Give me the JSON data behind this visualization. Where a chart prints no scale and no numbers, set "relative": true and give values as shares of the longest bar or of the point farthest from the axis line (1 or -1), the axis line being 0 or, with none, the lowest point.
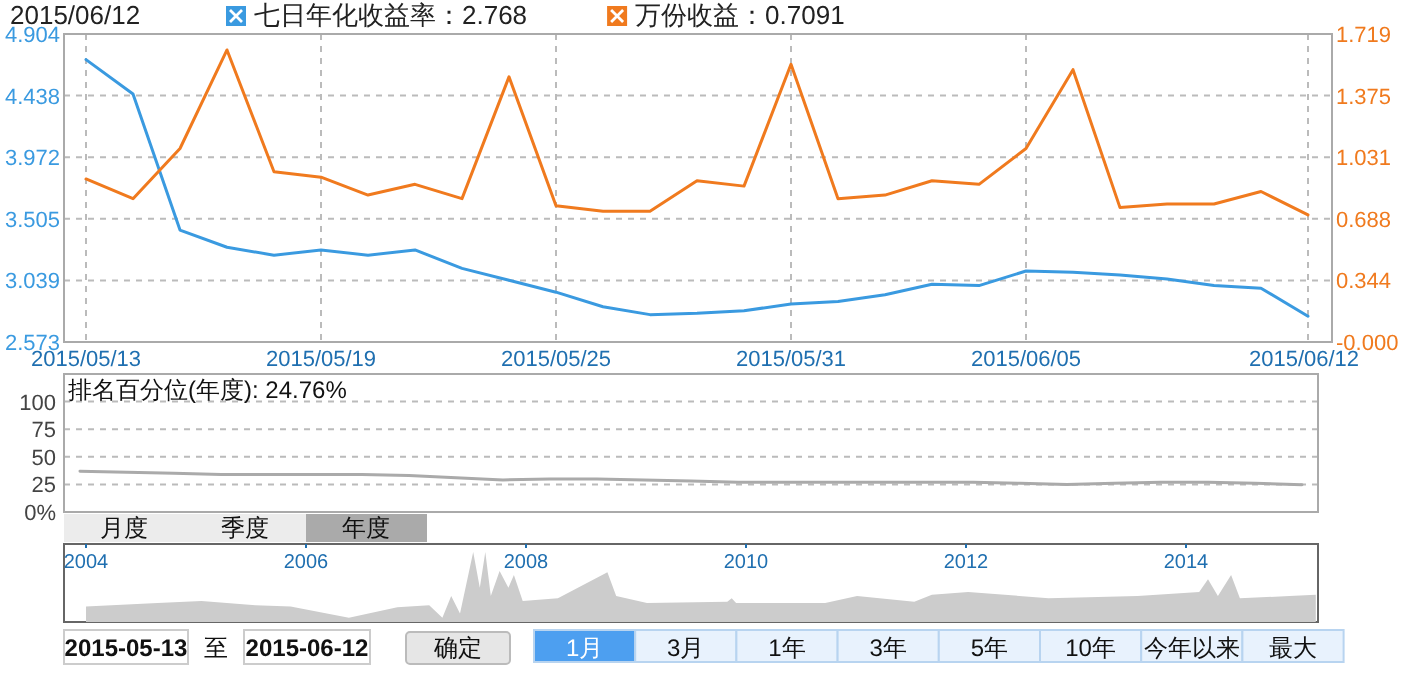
{
  "chart_data": [
    {
      "type": "line",
      "title": "2015/06/12",
      "categories": [
        "2015/05/13",
        null,
        null,
        null,
        null,
        "2015/05/19",
        null,
        null,
        null,
        null,
        "2015/05/25",
        null,
        null,
        null,
        null,
        "2015/05/31",
        null,
        null,
        null,
        null,
        "2015/06/05",
        null,
        null,
        null,
        null,
        null,
        "2015/06/12"
      ],
      "series": [
        {
          "name": "七日年化收益率：2.768",
          "color": "#3a9ae0",
          "values": [
            4.71,
            4.45,
            3.42,
            3.29,
            3.23,
            3.27,
            3.23,
            3.27,
            3.13,
            3.04,
            2.95,
            2.84,
            2.78,
            2.79,
            2.81,
            2.86,
            2.88,
            2.93,
            3.01,
            3.0,
            3.11,
            3.1,
            3.08,
            3.05,
            3.0,
            2.98,
            2.768
          ]
        },
        {
          "name": "万份收益：0.7091",
          "color": "#f07a1e",
          "axis": "y2",
          "values": [
            0.91,
            0.8,
            1.08,
            1.63,
            0.95,
            0.92,
            0.82,
            0.88,
            0.8,
            1.48,
            0.76,
            0.73,
            0.73,
            0.9,
            0.87,
            1.55,
            0.8,
            0.82,
            0.9,
            0.88,
            1.08,
            1.52,
            0.75,
            0.77,
            0.77,
            0.84,
            0.7091
          ]
        }
      ],
      "ylim": [
        2.573,
        4.904
      ],
      "yticks": [
        2.573,
        3.039,
        3.505,
        3.972,
        4.438,
        4.904
      ],
      "y2lim": [
        0,
        1.719
      ],
      "y2ticks": [
        {
          "value": 0,
          "label": "-0.000"
        },
        0.344,
        0.688,
        1.031,
        1.375,
        1.719
      ],
      "grid": true,
      "legend": "top left",
      "marker": "none",
      "line_style": "solid"
    },
    {
      "type": "line",
      "title": "排名百分位(年度): 24.76%",
      "categories": [
        null,
        null,
        null,
        null,
        null,
        null,
        null,
        null,
        null,
        null,
        null,
        null,
        null,
        null,
        null,
        null,
        null,
        null,
        null,
        null,
        null,
        null,
        null,
        null,
        null,
        null,
        null
      ],
      "series": [
        {
          "color": "#aaaaaa",
          "values": [
            37,
            36,
            35,
            34,
            34,
            34,
            34,
            33,
            31,
            29,
            30,
            30,
            29,
            28,
            27,
            27,
            27,
            27,
            27,
            27,
            26,
            25,
            26,
            27,
            27,
            26,
            24.76
          ]
        }
      ],
      "ylim": [
        0,
        125
      ],
      "yticks": [
        {
          "value": 0,
          "label": "0%"
        },
        25,
        50,
        75,
        100
      ],
      "grid": "y",
      "tick_labels": "y",
      "marker": "none",
      "line_style": "solid",
      "annotations": [
        "月度",
        "季度",
        "年度"
      ]
    },
    {
      "type": "area",
      "relative": true,
      "x": [
        2004.0,
        2004.65,
        2005.05,
        2005.54,
        2005.86,
        2006.39,
        2006.83,
        2007.12,
        2007.24,
        2007.32,
        2007.4,
        2007.52,
        2007.58,
        2007.63,
        2007.68,
        2007.76,
        2007.84,
        2007.89,
        2007.97,
        2008.29,
        2008.74,
        2008.82,
        2009.1,
        2009.83,
        2009.87,
        2009.91,
        2010.72,
        2011.01,
        2011.53,
        2011.69,
        2012.02,
        2012.75,
        2013.56,
        2014.12,
        2014.2,
        2014.29,
        2014.41,
        2014.49,
        2014.94,
        2015.18
      ],
      "series": [
        {
          "color": "#cccccc",
          "values": [
            0.22,
            0.27,
            0.3,
            0.24,
            0.22,
            0.06,
            0.21,
            0.24,
            0.06,
            0.37,
            0.12,
            1,
            0.49,
            1,
            0.37,
            0.73,
            0.49,
            0.67,
            0.3,
            0.34,
            0.71,
            0.37,
            0.27,
            0.29,
            0.34,
            0.27,
            0.27,
            0.37,
            0.29,
            0.39,
            0.43,
            0.34,
            0.37,
            0.43,
            0.61,
            0.37,
            0.67,
            0.34,
            0.37,
            0.39
          ]
        }
      ],
      "xlim": [
        2003.8,
        2015.2
      ],
      "xticks": [
        2004,
        2006,
        2008,
        2010,
        2012,
        2014
      ],
      "tick_labels": "x",
      "annotations": [
        "2015-05-13",
        "至",
        "2015-06-12",
        "确定",
        "1月",
        "3月",
        "1年",
        "3年",
        "5年",
        "10年",
        "今年以来",
        "最大"
      ]
    }
  ]
}
